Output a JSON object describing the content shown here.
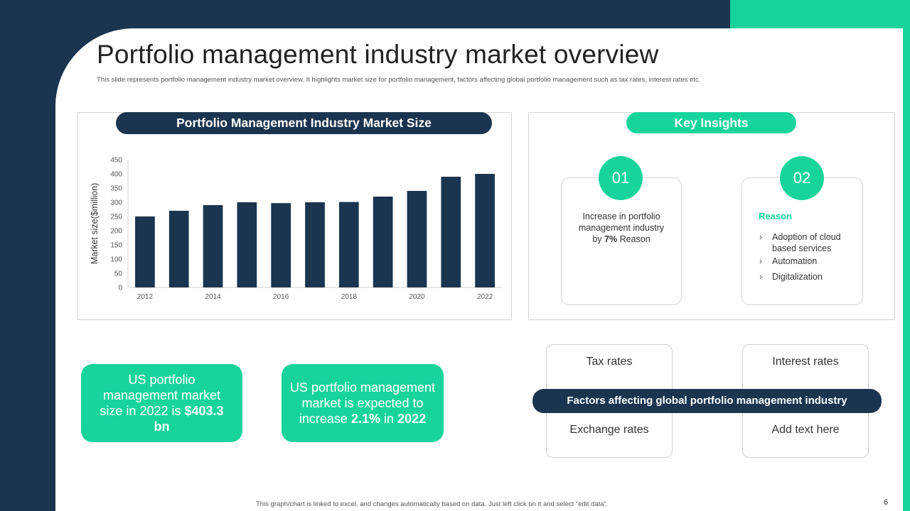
{
  "slide": {
    "title": "Portfolio management industry market overview",
    "subtitle": "This slide represents portfolio management industry market overview. It highlights market size for portfolio management,  factors affecting global portfolio management  such as tax rates, interest rates etc.",
    "footnote": "This graph/chart is linked to excel, and changes automatically based on data. Just left click on it and select “edit data”.",
    "page_number": "6"
  },
  "colors": {
    "navy": "#1b3550",
    "green": "#17d49b"
  },
  "market_panel": {
    "heading": "Portfolio Management Industry Market Size"
  },
  "chart_data": {
    "type": "bar",
    "title": "Portfolio Management Industry Market Size",
    "xlabel": "",
    "ylabel": "Market size($million)",
    "ylim": [
      0,
      450
    ],
    "yticks": [
      0,
      50,
      100,
      150,
      200,
      250,
      300,
      350,
      400,
      450
    ],
    "categories": [
      "2012",
      "2013",
      "2014",
      "2015",
      "2016",
      "2017",
      "2018",
      "2019",
      "2020",
      "2021",
      "2022"
    ],
    "xtick_labels": [
      "2012",
      "",
      "2014",
      "",
      "2016",
      "",
      "2018",
      "",
      "2020",
      "",
      "2022"
    ],
    "values": [
      250,
      270,
      290,
      300,
      297,
      300,
      301,
      320,
      340,
      390,
      400
    ],
    "color": "#1b3550",
    "grid": false
  },
  "insights": {
    "heading": "Key Insights",
    "card1": {
      "number": "01",
      "text_line1": "Increase in portfolio",
      "text_line2": "management industry",
      "text_by": "by",
      "text_pct": "7%",
      "text_end": "Reason"
    },
    "card2": {
      "number": "02",
      "heading": "Reason",
      "bullet_glyph": "›",
      "bullets": [
        "Adoption of cloud based services",
        "Automation",
        "Digitalization"
      ]
    }
  },
  "stats": {
    "stat1": {
      "text": "US portfolio management market size in 2022 is",
      "value": "$403.3 bn"
    },
    "stat2": {
      "text": "US portfolio management market is expected to increase",
      "value": "2.1%",
      "mid": "in",
      "year": "2022"
    }
  },
  "factors": {
    "heading": "Factors affecting global portfolio management industry",
    "tax": "Tax rates",
    "interest": "Interest rates",
    "exchange": "Exchange rates",
    "add": "Add text here"
  }
}
